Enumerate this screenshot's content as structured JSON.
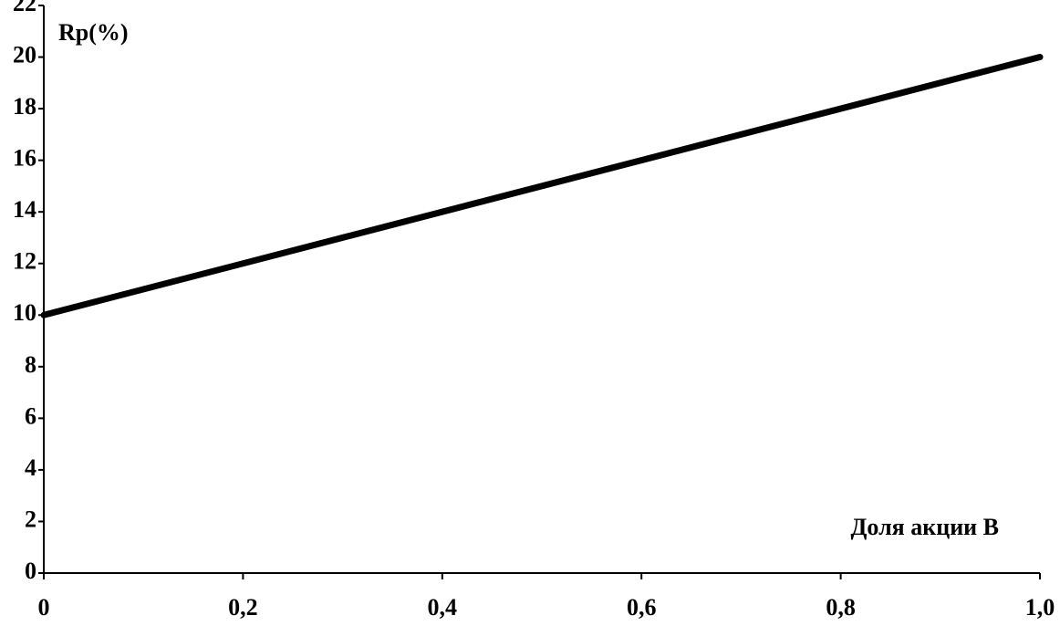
{
  "chart_data": {
    "type": "line",
    "y_label": "Rp(%)",
    "x_label": "Доля акции В",
    "x": [
      0,
      1
    ],
    "series": [
      {
        "color": "#000000",
        "values": [
          10,
          20
        ]
      }
    ],
    "xlim": [
      0,
      1
    ],
    "xticks": [
      0,
      {
        "value": 0.2,
        "label": "0,2"
      },
      {
        "value": 0.4,
        "label": "0,4"
      },
      {
        "value": 0.6,
        "label": "0,6"
      },
      {
        "value": 0.8,
        "label": "0,8"
      },
      {
        "value": 1,
        "label": "1,0"
      }
    ],
    "ylim": [
      0,
      22
    ],
    "yticks": [
      0,
      2,
      4,
      6,
      8,
      10,
      12,
      14,
      16,
      18,
      20,
      22
    ],
    "grid": false
  }
}
